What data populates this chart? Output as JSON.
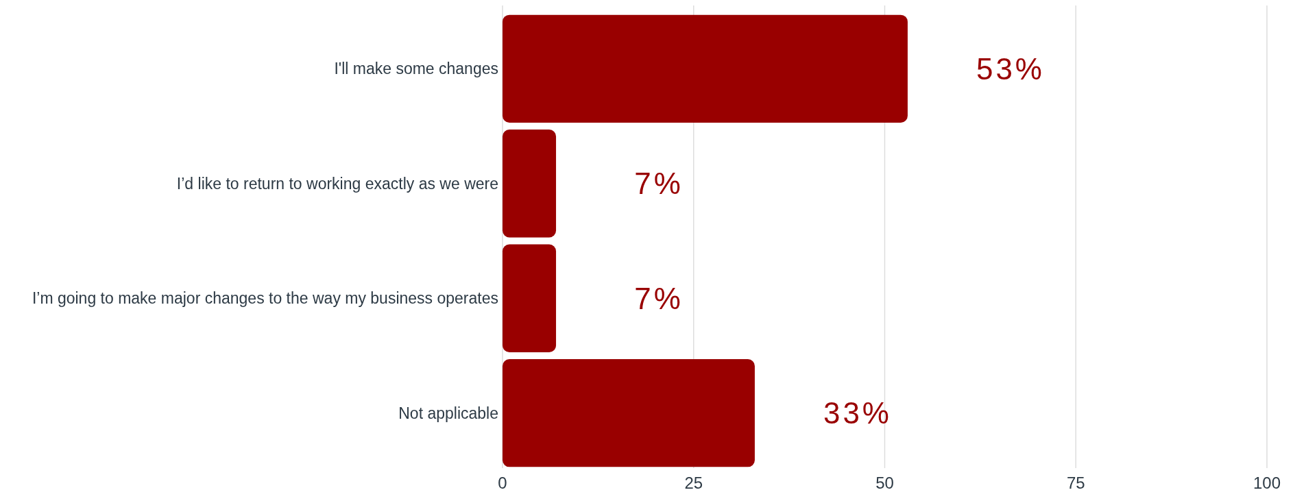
{
  "chart_data": {
    "type": "bar",
    "orientation": "horizontal",
    "categories": [
      "I'll make some changes",
      "I’d like to return to working exactly as we were",
      "I’m going to make major changes to the way my business operates",
      "Not applicable"
    ],
    "values": [
      53,
      7,
      7,
      33
    ],
    "value_labels": [
      "53%",
      "7%",
      "7%",
      "33%"
    ],
    "color": "#990000",
    "xlim": [
      0,
      100
    ],
    "xticks": [
      0,
      25,
      50,
      75,
      100
    ],
    "grid": "x"
  }
}
